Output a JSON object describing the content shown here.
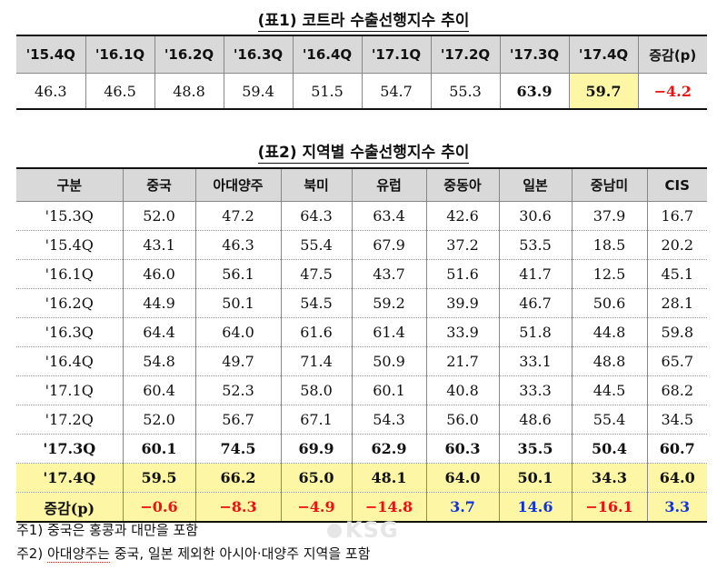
{
  "table1": {
    "title": "(표1) 코트라 수출선행지수 추이",
    "headers": [
      "'15.4Q",
      "'16.1Q",
      "'16.2Q",
      "'16.3Q",
      "'16.4Q",
      "'17.1Q",
      "'17.2Q",
      "'17.3Q",
      "'17.4Q",
      "증감(p)"
    ],
    "values": [
      "46.3",
      "46.5",
      "48.8",
      "59.4",
      "51.5",
      "54.7",
      "55.3",
      "63.9",
      "59.7",
      "−4.2"
    ]
  },
  "table2": {
    "title": "(표2) 지역별 수출선행지수 추이",
    "headers": [
      "구분",
      "중국",
      "아대양주",
      "북미",
      "유럽",
      "중동아",
      "일본",
      "중남미",
      "CIS"
    ],
    "rows": [
      [
        "'15.3Q",
        "52.0",
        "47.2",
        "64.3",
        "63.4",
        "42.6",
        "30.6",
        "37.9",
        "16.7"
      ],
      [
        "'15.4Q",
        "43.1",
        "46.3",
        "55.4",
        "67.9",
        "37.2",
        "53.5",
        "18.5",
        "20.2"
      ],
      [
        "'16.1Q",
        "46.0",
        "56.1",
        "47.5",
        "43.7",
        "51.6",
        "41.7",
        "12.5",
        "45.1"
      ],
      [
        "'16.2Q",
        "44.9",
        "50.1",
        "54.5",
        "59.2",
        "39.9",
        "46.7",
        "50.6",
        "28.1"
      ],
      [
        "'16.3Q",
        "64.4",
        "64.0",
        "61.6",
        "61.4",
        "33.9",
        "51.8",
        "44.8",
        "59.8"
      ],
      [
        "'16.4Q",
        "54.8",
        "49.7",
        "71.4",
        "50.9",
        "21.7",
        "33.1",
        "48.8",
        "65.7"
      ],
      [
        "'17.1Q",
        "60.4",
        "52.3",
        "58.0",
        "60.1",
        "40.8",
        "33.3",
        "44.5",
        "68.2"
      ],
      [
        "'17.2Q",
        "52.0",
        "56.7",
        "67.1",
        "54.3",
        "56.0",
        "48.6",
        "55.4",
        "34.5"
      ],
      [
        "'17.3Q",
        "60.1",
        "74.5",
        "69.9",
        "62.9",
        "60.3",
        "35.5",
        "50.4",
        "60.7"
      ],
      [
        "'17.4Q",
        "59.5",
        "66.2",
        "65.0",
        "48.1",
        "64.0",
        "50.1",
        "34.3",
        "64.0"
      ]
    ],
    "change_row": [
      "증감(p)",
      "−0.6",
      "−8.3",
      "−4.9",
      "−14.8",
      "3.7",
      "14.6",
      "−16.1",
      "3.3"
    ],
    "change_colors": [
      "",
      "red",
      "red",
      "red",
      "red",
      "blue",
      "blue",
      "red",
      "blue"
    ]
  },
  "notes": {
    "note1": "주1) 중국은 홍콩과 대만을 포함",
    "note2_prefix": "주2) ",
    "note2_term": "아대양주는",
    "note2_rest": " 중국, 일본 제외한 아시아·대양주 지역을 포함"
  },
  "watermark": "KSG",
  "colors": {
    "highlight": "#fdf6a4",
    "header_bg": "#d9d9d9",
    "negative": "#ee1111",
    "positive": "#1133dd"
  }
}
